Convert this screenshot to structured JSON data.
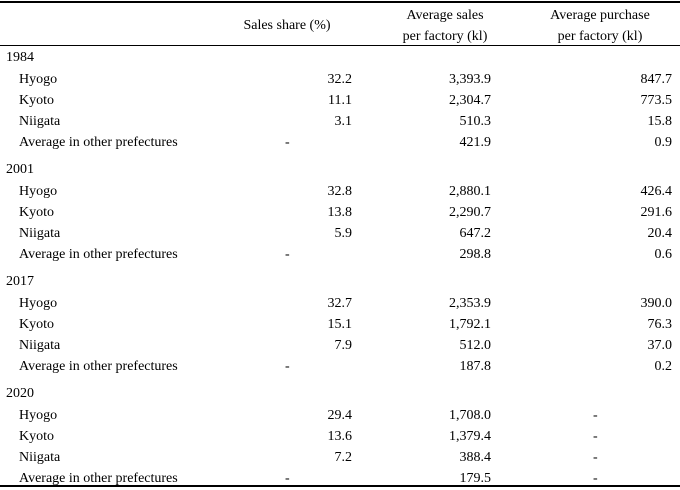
{
  "columns": {
    "sales_share": "Sales share (%)",
    "avg_sales": [
      "Average sales",
      "per factory (kl)"
    ],
    "avg_purchase": [
      "Average purchase",
      "per factory (kl)"
    ]
  },
  "sections": [
    {
      "year": "1984",
      "rows": [
        {
          "name": "Hyogo",
          "share": "32.2",
          "sales": "3,393.9",
          "purchase": "847.7"
        },
        {
          "name": "Kyoto",
          "share": "11.1",
          "sales": "2,304.7",
          "purchase": "773.5"
        },
        {
          "name": "Niigata",
          "share": "3.1",
          "sales": "510.3",
          "purchase": "15.8"
        },
        {
          "name": "Average in other prefectures",
          "share": "-",
          "sales": "421.9",
          "purchase": "0.9"
        }
      ]
    },
    {
      "year": "2001",
      "rows": [
        {
          "name": "Hyogo",
          "share": "32.8",
          "sales": "2,880.1",
          "purchase": "426.4"
        },
        {
          "name": "Kyoto",
          "share": "13.8",
          "sales": "2,290.7",
          "purchase": "291.6"
        },
        {
          "name": "Niigata",
          "share": "5.9",
          "sales": "647.2",
          "purchase": "20.4"
        },
        {
          "name": "Average in other prefectures",
          "share": "-",
          "sales": "298.8",
          "purchase": "0.6"
        }
      ]
    },
    {
      "year": "2017",
      "rows": [
        {
          "name": "Hyogo",
          "share": "32.7",
          "sales": "2,353.9",
          "purchase": "390.0"
        },
        {
          "name": "Kyoto",
          "share": "15.1",
          "sales": "1,792.1",
          "purchase": "76.3"
        },
        {
          "name": "Niigata",
          "share": "7.9",
          "sales": "512.0",
          "purchase": "37.0"
        },
        {
          "name": "Average in other prefectures",
          "share": "-",
          "sales": "187.8",
          "purchase": "0.2"
        }
      ]
    },
    {
      "year": "2020",
      "rows": [
        {
          "name": "Hyogo",
          "share": "29.4",
          "sales": "1,708.0",
          "purchase": "-"
        },
        {
          "name": "Kyoto",
          "share": "13.6",
          "sales": "1,379.4",
          "purchase": "-"
        },
        {
          "name": "Niigata",
          "share": "7.2",
          "sales": "388.4",
          "purchase": "-"
        },
        {
          "name": "Average in other prefectures",
          "share": "-",
          "sales": "179.5",
          "purchase": "-"
        }
      ]
    }
  ]
}
